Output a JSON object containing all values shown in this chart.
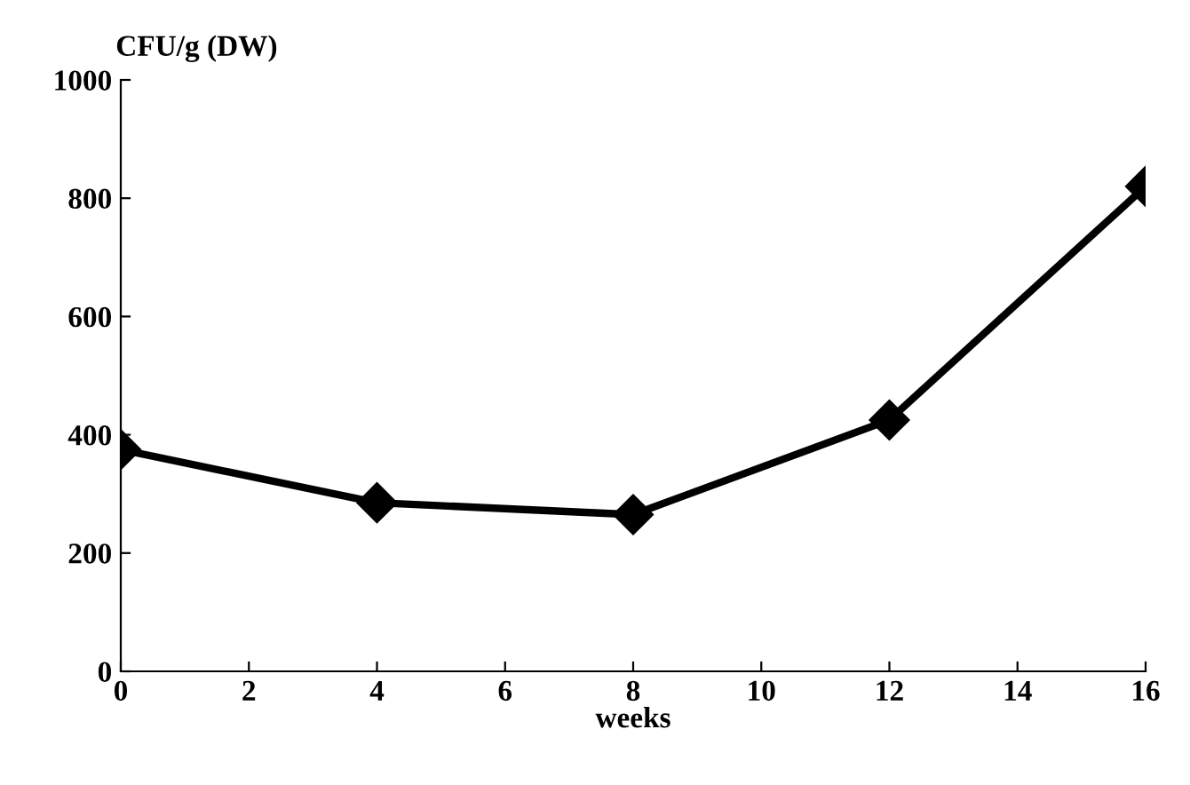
{
  "chart_data": {
    "type": "line",
    "xlabel": "weeks",
    "ylabel": "CFU/g (DW)",
    "x": [
      0,
      4,
      8,
      12,
      16
    ],
    "series": [
      {
        "color": "#000000",
        "values": [
          375,
          285,
          265,
          425,
          820
        ]
      }
    ],
    "xlim": [
      0,
      16
    ],
    "xticks": [
      0,
      2,
      4,
      6,
      8,
      10,
      12,
      14,
      16
    ],
    "ylim": [
      0,
      1000
    ],
    "yticks": [
      0,
      200,
      400,
      600,
      800,
      1000
    ],
    "marker": "diamond",
    "line_style": "solid",
    "grid": false,
    "legend": false
  }
}
